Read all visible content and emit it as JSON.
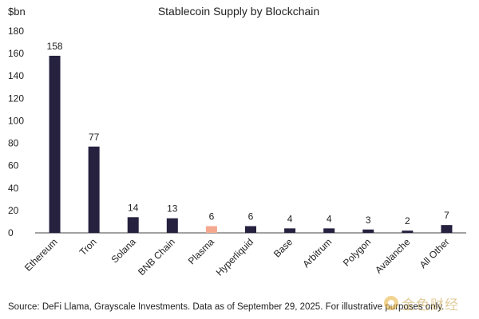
{
  "chart_data": {
    "type": "bar",
    "title": "Stablecoin Supply by Blockchain",
    "ylabel": "$bn",
    "ylim": [
      0,
      180
    ],
    "yticks": [
      0,
      20,
      40,
      60,
      80,
      100,
      120,
      140,
      160,
      180
    ],
    "categories": [
      "Ethereum",
      "Tron",
      "Solana",
      "BNB Chain",
      "Plasma",
      "Hyperliquid",
      "Base",
      "Arbitrum",
      "Polygon",
      "Avalanche",
      "All Other"
    ],
    "values": [
      158,
      77,
      14,
      13,
      6,
      6,
      4,
      4,
      3,
      2,
      7
    ],
    "data_labels": [
      "158",
      "77",
      "14",
      "13",
      "6",
      "6",
      "4",
      "4",
      "3",
      "2",
      "7"
    ],
    "highlight_category": "Plasma",
    "colors": {
      "bar": "#25213f",
      "highlight": "#f4a98f",
      "axis": "#444444"
    },
    "grid": false,
    "legend": "none"
  },
  "footer": {
    "source": "Source: DeFi Llama, Grayscale Investments. Data as of September 29, 2025. For illustrative purposes only."
  },
  "watermark": {
    "text": "金色财经"
  }
}
